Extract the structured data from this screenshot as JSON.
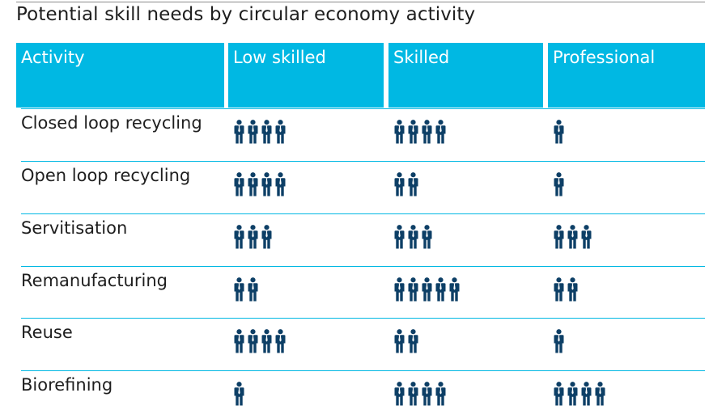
{
  "title": "Potential skill needs by circular economy activity",
  "colors": {
    "header_bg": "#00b8e3",
    "header_text": "#ffffff",
    "icon": "#0d3f66",
    "divider": "#00b8e3",
    "text": "#1e1e1e"
  },
  "chart_data": {
    "type": "table",
    "title": "Potential skill needs by circular economy activity",
    "columns": [
      "Activity",
      "Low skilled",
      "Skilled",
      "Professional"
    ],
    "icon": "person-icon",
    "rows": [
      {
        "activity": "Closed loop recycling",
        "values": [
          4,
          4,
          1
        ]
      },
      {
        "activity": "Open loop recycling",
        "values": [
          4,
          2,
          1
        ]
      },
      {
        "activity": "Servitisation",
        "values": [
          3,
          3,
          3
        ]
      },
      {
        "activity": "Remanufacturing",
        "values": [
          2,
          5,
          2
        ]
      },
      {
        "activity": "Reuse",
        "values": [
          4,
          2,
          1
        ]
      },
      {
        "activity": "Biorefining",
        "values": [
          1,
          4,
          4
        ]
      }
    ]
  }
}
